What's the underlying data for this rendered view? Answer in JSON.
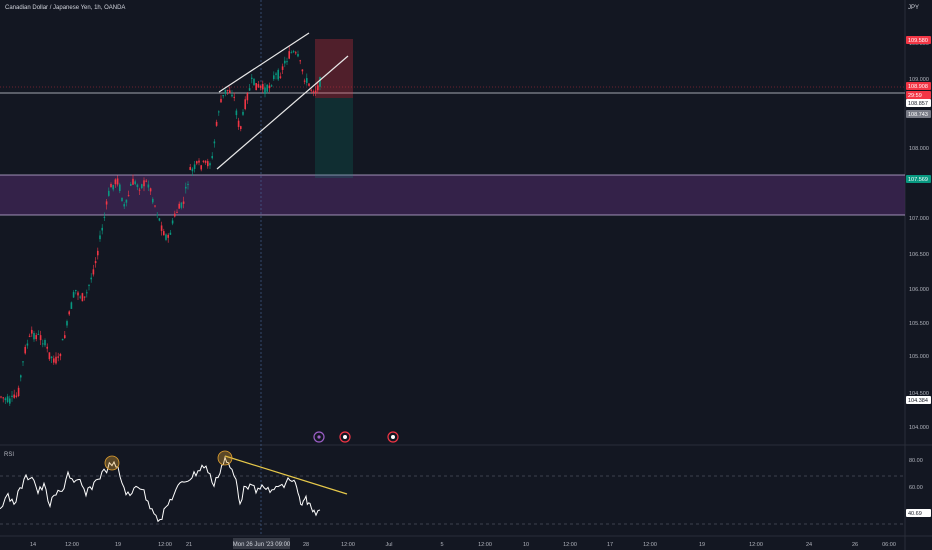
{
  "symbol": {
    "title": "Canadian Dollar / Japanese Yen, 1h, OANDA",
    "currency": "JPY"
  },
  "price_axis": {
    "ticks": [
      "109.500",
      "109.000",
      "108.000",
      "107.500",
      "107.000",
      "106.500",
      "106.000",
      "105.500",
      "105.000",
      "104.500",
      "104.000"
    ],
    "badges": [
      {
        "label": "109.580",
        "bg": "#f23645",
        "fg": "#ffffff"
      },
      {
        "label": "108.908",
        "bg": "#f23645",
        "fg": "#ffffff"
      },
      {
        "label": "29:59",
        "bg": "#f23645",
        "fg": "#ffffff"
      },
      {
        "label": "108.857",
        "bg": "#ffffff",
        "fg": "#131722"
      },
      {
        "label": "108.743",
        "bg": "#787b86",
        "fg": "#ffffff"
      },
      {
        "label": "107.569",
        "bg": "#089981",
        "fg": "#ffffff"
      },
      {
        "label": "104.384",
        "bg": "#ffffff",
        "fg": "#131722"
      }
    ]
  },
  "rsi": {
    "label": "RSI",
    "ticks": [
      "80.00",
      "60.00"
    ],
    "value": "40.69"
  },
  "time_axis": {
    "ticks": [
      "14",
      "12:00",
      "19",
      "12:00",
      "21",
      "12:00",
      "28",
      "12:00",
      "Jul",
      "5",
      "12:00",
      "10",
      "12:00",
      "17",
      "12:00",
      "19",
      "12:00",
      "24",
      "26",
      "06:00"
    ],
    "cursor_label": "Mon 26 Jun '23   09:00"
  },
  "colors": {
    "bg": "#131722",
    "up": "#089981",
    "down": "#f23645",
    "zone": "#4a2a5c",
    "rsi_line": "#ffffff",
    "trend": "#e6c84a"
  }
}
